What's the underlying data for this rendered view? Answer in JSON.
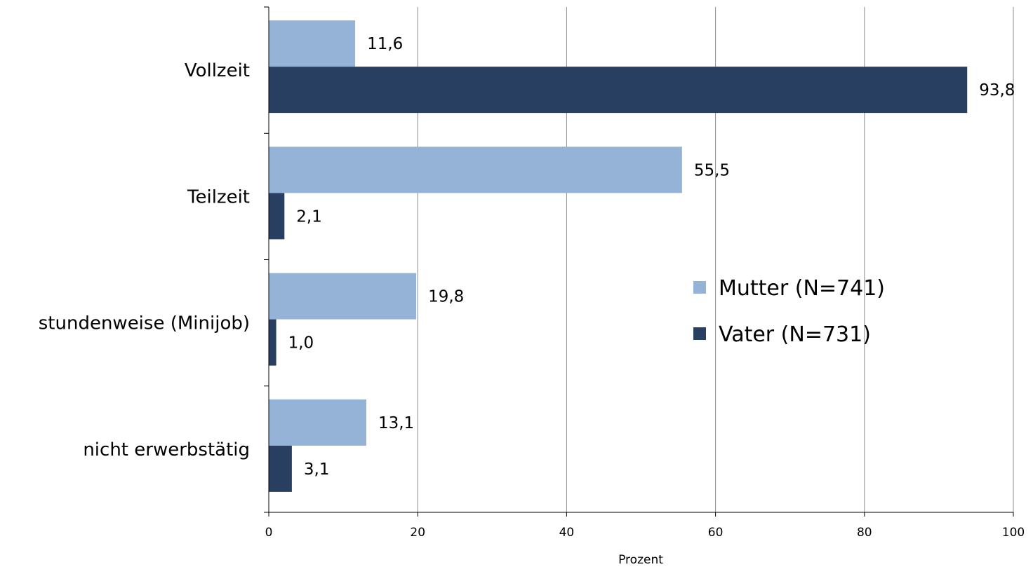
{
  "chart_data": {
    "type": "bar",
    "orientation": "horizontal",
    "categories": [
      "Vollzeit",
      "Teilzeit",
      "stundenweise (Minijob)",
      "nicht erwerbstätig"
    ],
    "series": [
      {
        "name": "Mutter (N=741)",
        "values": [
          11.6,
          55.5,
          19.8,
          13.1
        ],
        "value_labels": [
          "11,6",
          "55,5",
          "19,8",
          "13,1"
        ],
        "color": "#95b3d7"
      },
      {
        "name": "Vater (N=731)",
        "values": [
          93.8,
          2.1,
          1.0,
          3.1
        ],
        "value_labels": [
          "93,8",
          "2,1",
          "1,0",
          "3,1"
        ],
        "color": "#283f61"
      }
    ],
    "xlabel": "Prozent",
    "xlim": [
      0,
      100
    ],
    "xticks": [
      "0",
      "20",
      "40",
      "60",
      "80",
      "100"
    ],
    "grid": "vertical",
    "legend": "center-right"
  }
}
